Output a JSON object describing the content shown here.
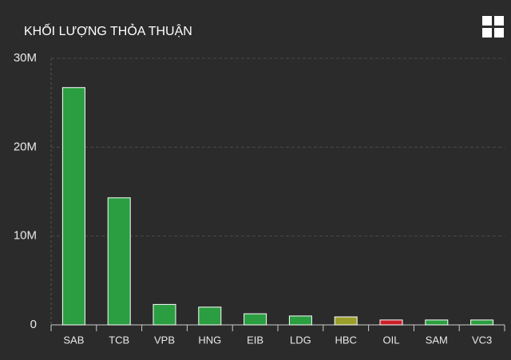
{
  "chart_data": {
    "type": "bar",
    "title": "KHỐI LƯỢNG THỎA THUẬN",
    "categories": [
      "SAB",
      "TCB",
      "VPB",
      "HNG",
      "EIB",
      "LDG",
      "HBC",
      "OIL",
      "SAM",
      "VC3"
    ],
    "values": [
      26700000,
      14300000,
      2300000,
      2000000,
      1250000,
      1000000,
      900000,
      550000,
      550000,
      550000
    ],
    "colors": [
      "#2a9e40",
      "#2a9e40",
      "#2a9e40",
      "#2a9e40",
      "#2a9e40",
      "#2a9e40",
      "#9b9e2a",
      "#c8202a",
      "#2a9e40",
      "#2a9e40"
    ],
    "ylim": [
      0,
      30000000
    ],
    "yticks": [
      0,
      {
        "value": 10000000,
        "label": "10M"
      },
      {
        "value": 20000000,
        "label": "20M"
      },
      {
        "value": 30000000,
        "label": "30M"
      }
    ],
    "grid": true
  }
}
